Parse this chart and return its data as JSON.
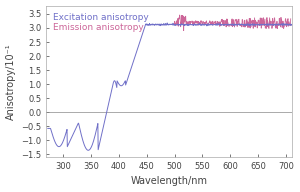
{
  "title": "",
  "xlabel": "Wavelength/nm",
  "ylabel": "Anisotropy/10⁻¹",
  "xlim": [
    270,
    710
  ],
  "ylim": [
    -1.6,
    3.8
  ],
  "yticks": [
    -1.5,
    -1.0,
    -0.5,
    0.0,
    0.5,
    1.0,
    1.5,
    2.0,
    2.5,
    3.0,
    3.5
  ],
  "xticks": [
    300,
    350,
    400,
    450,
    500,
    550,
    600,
    650,
    700
  ],
  "excitation_color": "#7070c8",
  "emission_color": "#cc6699",
  "legend_excitation": "Excitation anisotropy",
  "legend_emission": "Emission anisotropy",
  "background_color": "#ffffff",
  "plot_bg_color": "#ffffff",
  "spine_color": "#aaaaaa",
  "zeroline_color": "#888888",
  "label_fontsize": 7,
  "tick_fontsize": 6,
  "legend_fontsize": 6.5,
  "linewidth_exc": 0.7,
  "linewidth_em": 0.6
}
